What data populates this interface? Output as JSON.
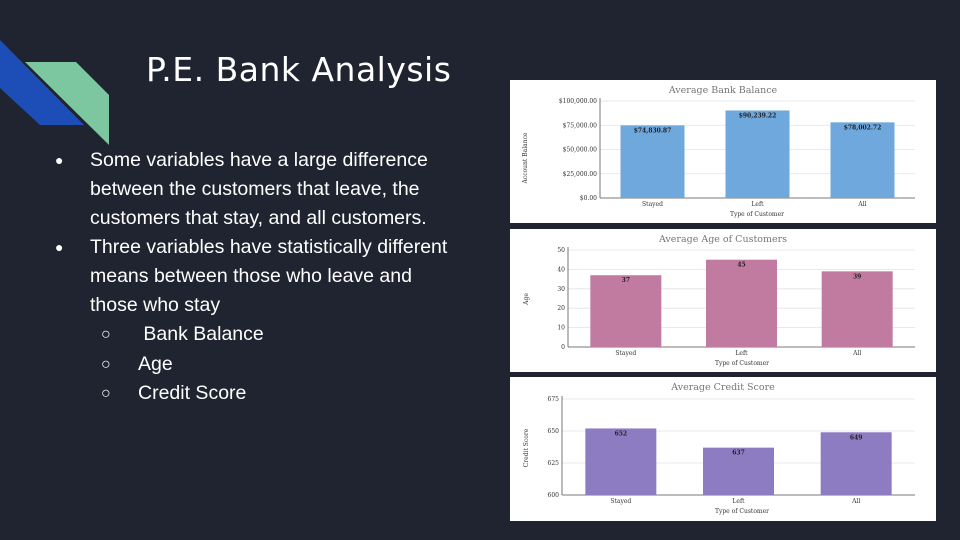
{
  "slide": {
    "title": "P.E. Bank Analysis",
    "colors": {
      "background": "#1f2430",
      "accent_blue": "#1d4eb8",
      "accent_green": "#7cc6a0"
    },
    "bullets": [
      "Some variables have a large difference between the customers that leave, the customers that stay, and all customers.",
      "Three variables have statistically different means between those who leave and those who stay"
    ],
    "sub_bullets": [
      " Bank Balance",
      "Age",
      "Credit Score"
    ]
  },
  "chart_data": [
    {
      "type": "bar",
      "title": "Average Bank Balance",
      "xlabel": "Type of Customer",
      "ylabel": "Account Balance",
      "categories": [
        "Stayed",
        "Left",
        "All"
      ],
      "values": [
        74830.87,
        90239.22,
        78002.72
      ],
      "data_labels": [
        "$74,830.87",
        "$90,239.22",
        "$78,002.72"
      ],
      "ylim": [
        0,
        100000
      ],
      "yticks": [
        0,
        25000,
        50000,
        75000,
        100000
      ],
      "ytick_labels": [
        "$0.00",
        "$25,000.00",
        "$50,000.00",
        "$75,000.00",
        "$100,000.00"
      ],
      "color": "#6fa8dc",
      "grid": true
    },
    {
      "type": "bar",
      "title": "Average Age of Customers",
      "xlabel": "Type of Customer",
      "ylabel": "Age",
      "categories": [
        "Stayed",
        "Left",
        "All"
      ],
      "values": [
        37,
        45,
        39
      ],
      "data_labels": [
        "37",
        "45",
        "39"
      ],
      "ylim": [
        0,
        50
      ],
      "yticks": [
        0,
        10,
        20,
        30,
        40,
        50
      ],
      "ytick_labels": [
        "0",
        "10",
        "20",
        "30",
        "40",
        "50"
      ],
      "color": "#c27ba0",
      "grid": true
    },
    {
      "type": "bar",
      "title": "Average Credit Score",
      "xlabel": "Type of Customer",
      "ylabel": "Credit Score",
      "categories": [
        "Stayed",
        "Left",
        "All"
      ],
      "values": [
        652,
        637,
        649
      ],
      "data_labels": [
        "652",
        "637",
        "649"
      ],
      "ylim": [
        600,
        675
      ],
      "yticks": [
        600,
        625,
        650,
        675
      ],
      "ytick_labels": [
        "600",
        "625",
        "650",
        "675"
      ],
      "color": "#8e7cc3",
      "grid": true
    }
  ]
}
